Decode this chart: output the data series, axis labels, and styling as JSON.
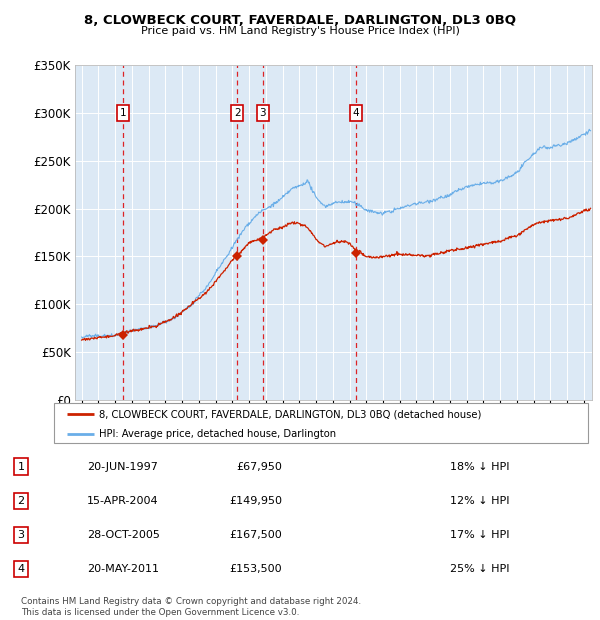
{
  "title": "8, CLOWBECK COURT, FAVERDALE, DARLINGTON, DL3 0BQ",
  "subtitle": "Price paid vs. HM Land Registry's House Price Index (HPI)",
  "background_color": "#dce9f5",
  "ylim": [
    0,
    350000
  ],
  "yticks": [
    0,
    50000,
    100000,
    150000,
    200000,
    250000,
    300000,
    350000
  ],
  "xlim_start": 1994.6,
  "xlim_end": 2025.5,
  "transactions": [
    {
      "label": "1",
      "date": "20-JUN-1997",
      "price": 67950,
      "pct": "18% ↓ HPI",
      "year": 1997.46
    },
    {
      "label": "2",
      "date": "15-APR-2004",
      "price": 149950,
      "pct": "12% ↓ HPI",
      "year": 2004.29
    },
    {
      "label": "3",
      "date": "28-OCT-2005",
      "price": 167500,
      "pct": "17% ↓ HPI",
      "year": 2005.82
    },
    {
      "label": "4",
      "date": "20-MAY-2011",
      "price": 153500,
      "pct": "25% ↓ HPI",
      "year": 2011.38
    }
  ],
  "hpi_color": "#6aaee8",
  "price_color": "#cc2200",
  "marker_color": "#cc2200",
  "legend_label_price": "8, CLOWBECK COURT, FAVERDALE, DARLINGTON, DL3 0BQ (detached house)",
  "legend_label_hpi": "HPI: Average price, detached house, Darlington",
  "footer": "Contains HM Land Registry data © Crown copyright and database right 2024.\nThis data is licensed under the Open Government Licence v3.0.",
  "hpi_waypoints": [
    [
      1995.0,
      65000
    ],
    [
      1996.0,
      68000
    ],
    [
      1997.0,
      70000
    ],
    [
      1997.5,
      72000
    ],
    [
      1998.5,
      76000
    ],
    [
      1999.5,
      80000
    ],
    [
      2000.5,
      88000
    ],
    [
      2001.5,
      100000
    ],
    [
      2002.5,
      120000
    ],
    [
      2003.5,
      145000
    ],
    [
      2004.3,
      168000
    ],
    [
      2005.0,
      185000
    ],
    [
      2005.5,
      195000
    ],
    [
      2006.0,
      200000
    ],
    [
      2007.0,
      210000
    ],
    [
      2007.5,
      218000
    ],
    [
      2008.0,
      222000
    ],
    [
      2008.5,
      228000
    ],
    [
      2009.0,
      210000
    ],
    [
      2009.5,
      200000
    ],
    [
      2010.0,
      203000
    ],
    [
      2010.5,
      205000
    ],
    [
      2011.0,
      204000
    ],
    [
      2011.5,
      200000
    ],
    [
      2012.0,
      196000
    ],
    [
      2013.0,
      193000
    ],
    [
      2014.0,
      198000
    ],
    [
      2015.0,
      205000
    ],
    [
      2016.0,
      210000
    ],
    [
      2017.0,
      215000
    ],
    [
      2017.5,
      220000
    ],
    [
      2018.0,
      223000
    ],
    [
      2019.0,
      225000
    ],
    [
      2020.0,
      228000
    ],
    [
      2021.0,
      238000
    ],
    [
      2022.0,
      258000
    ],
    [
      2022.5,
      265000
    ],
    [
      2023.0,
      265000
    ],
    [
      2023.5,
      268000
    ],
    [
      2024.0,
      270000
    ],
    [
      2024.5,
      273000
    ],
    [
      2025.0,
      278000
    ],
    [
      2025.4,
      282000
    ]
  ],
  "prop_waypoints": [
    [
      1995.0,
      63000
    ],
    [
      1996.0,
      64500
    ],
    [
      1997.0,
      65500
    ],
    [
      1997.46,
      67950
    ],
    [
      1998.5,
      71000
    ],
    [
      1999.5,
      74000
    ],
    [
      2000.5,
      82000
    ],
    [
      2001.5,
      94000
    ],
    [
      2002.5,
      110000
    ],
    [
      2003.5,
      132000
    ],
    [
      2004.29,
      149950
    ],
    [
      2004.5,
      152000
    ],
    [
      2005.0,
      162000
    ],
    [
      2005.82,
      167500
    ],
    [
      2006.0,
      170000
    ],
    [
      2006.5,
      175000
    ],
    [
      2007.0,
      178000
    ],
    [
      2007.5,
      183000
    ],
    [
      2008.0,
      182000
    ],
    [
      2008.5,
      178000
    ],
    [
      2009.0,
      165000
    ],
    [
      2009.5,
      158000
    ],
    [
      2010.0,
      160000
    ],
    [
      2010.5,
      163000
    ],
    [
      2011.0,
      162000
    ],
    [
      2011.38,
      153500
    ],
    [
      2011.5,
      153000
    ],
    [
      2012.0,
      148000
    ],
    [
      2012.5,
      147000
    ],
    [
      2013.0,
      148000
    ],
    [
      2013.5,
      150000
    ],
    [
      2014.0,
      151000
    ],
    [
      2015.0,
      150000
    ],
    [
      2015.5,
      149000
    ],
    [
      2016.0,
      151000
    ],
    [
      2017.0,
      155000
    ],
    [
      2018.0,
      158000
    ],
    [
      2019.0,
      162000
    ],
    [
      2020.0,
      165000
    ],
    [
      2021.0,
      172000
    ],
    [
      2022.0,
      182000
    ],
    [
      2023.0,
      185000
    ],
    [
      2024.0,
      188000
    ],
    [
      2024.5,
      192000
    ],
    [
      2025.0,
      196000
    ],
    [
      2025.4,
      200000
    ]
  ]
}
